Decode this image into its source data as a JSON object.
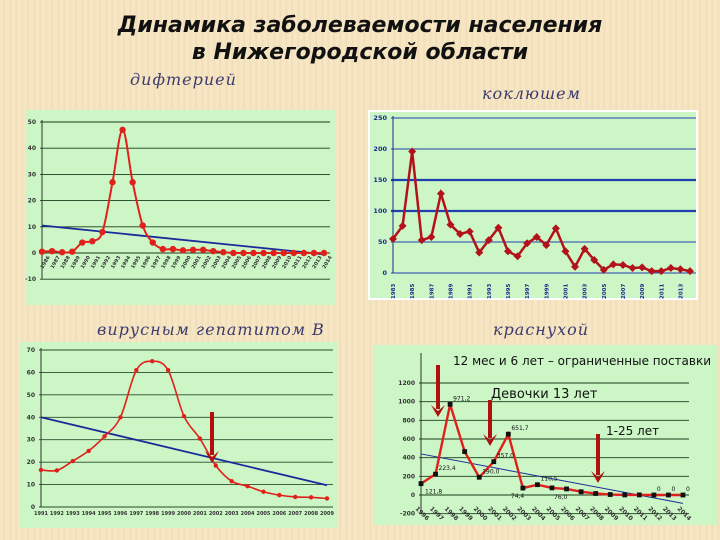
{
  "title": {
    "line1": "Динамика заболеваемости населения",
    "line2": "в Нижегородской области"
  },
  "subtitles": {
    "diphtheria": "дифтерией",
    "pertussis": "коклюшем",
    "hepatitis_b": "вирусным гепатитом В",
    "rubella": "краснухой"
  },
  "annotations": {
    "rubella_note1": "12 мес и 6 лет – ограниченные поставки",
    "rubella_note2": "Девочки 13 лет",
    "rubella_note3": "1-25 лет"
  },
  "colors": {
    "series": "#e0201a",
    "series_dark": "#b3121a",
    "trend": "#1a2a9a",
    "panel": "#ccf6c6",
    "arrow": "#b01010"
  },
  "chart_data": [
    {
      "id": "diphtheria",
      "type": "line",
      "ylim": [
        -10,
        50
      ],
      "yticks": [
        -10,
        0,
        10,
        20,
        30,
        40,
        50
      ],
      "grid": true,
      "categories": [
        "1986",
        "1987",
        "1988",
        "1989",
        "1990",
        "1991",
        "1992",
        "1993",
        "1994",
        "1995",
        "1996",
        "1997",
        "1998",
        "1999",
        "2000",
        "2001",
        "2002",
        "2003",
        "2004",
        "2005",
        "2006",
        "2007",
        "2008",
        "2009",
        "2010",
        "2011",
        "2012",
        "2013",
        "2014"
      ],
      "values": [
        0.5,
        0.7,
        0.3,
        0.5,
        4,
        4.5,
        8,
        27,
        47,
        27,
        10.5,
        4,
        1.5,
        1.5,
        1,
        1.2,
        1.2,
        0.7,
        0.3,
        0,
        0,
        0,
        0,
        0,
        0,
        0,
        0,
        0,
        0
      ],
      "trend": [
        10.5,
        -0.5
      ]
    },
    {
      "id": "pertussis",
      "type": "line",
      "ylim": [
        0,
        250
      ],
      "yticks": [
        0,
        50,
        100,
        150,
        200,
        250
      ],
      "grid": true,
      "categories": [
        "1983",
        "1984",
        "1985",
        "1986",
        "1987",
        "1988",
        "1989",
        "1990",
        "1991",
        "1992",
        "1993",
        "1994",
        "1995",
        "1996",
        "1997",
        "1998",
        "1999",
        "2000",
        "2001",
        "2002",
        "2003",
        "2004",
        "2005",
        "2006",
        "2007",
        "2008",
        "2009",
        "2010",
        "2011",
        "2012",
        "2013",
        "2014"
      ],
      "xlabels_every": 2,
      "values": [
        55,
        76,
        196,
        53,
        58,
        128,
        78,
        63,
        67,
        33,
        53,
        73,
        35,
        27,
        48,
        58,
        45,
        72,
        35,
        10,
        39,
        21,
        5,
        14,
        13,
        8,
        9,
        3,
        3,
        8,
        6,
        3
      ]
    },
    {
      "id": "hepatitis_b",
      "type": "line",
      "ylim": [
        0,
        70
      ],
      "yticks": [
        0,
        10,
        20,
        30,
        40,
        50,
        60,
        70
      ],
      "grid": true,
      "categories": [
        "1991",
        "1992",
        "1993",
        "1994",
        "1995",
        "1996",
        "1997",
        "1998",
        "1999",
        "2000",
        "2001",
        "2002",
        "2003",
        "2004",
        "2005",
        "2006",
        "2007",
        "2008",
        "2009"
      ],
      "values": [
        16.5,
        16.3,
        20.5,
        25,
        31.5,
        40,
        61,
        65,
        61,
        40.5,
        30.5,
        18.5,
        11.5,
        9.3,
        6.8,
        5.3,
        4.5,
        4.3,
        3.8
      ],
      "trend": [
        40,
        9.7
      ]
    },
    {
      "id": "rubella",
      "type": "line",
      "ylim": [
        -200,
        1200
      ],
      "yticks": [
        -200,
        0,
        200,
        400,
        600,
        800,
        1000,
        1200
      ],
      "grid": true,
      "categories": [
        "1996",
        "1997",
        "1998",
        "1999",
        "2000",
        "2001",
        "2002",
        "2003",
        "2004",
        "2005",
        "2006",
        "2007",
        "2008",
        "2009",
        "2010",
        "2011",
        "2012",
        "2013",
        "2014"
      ],
      "values": [
        121.8,
        223.4,
        971.2,
        465,
        190.0,
        357.0,
        651.7,
        74.4,
        110.5,
        76.0,
        65,
        35,
        16,
        5,
        1,
        1,
        0,
        0,
        0
      ],
      "data_labels": [
        "121,8",
        "223,4",
        "971,2",
        "",
        "190,0",
        "357,0",
        "651,7",
        "74,4",
        "110,5",
        "76,0",
        "",
        "",
        "",
        "",
        "",
        "",
        "0",
        "0",
        "0"
      ],
      "trend": [
        440,
        -90
      ]
    }
  ]
}
